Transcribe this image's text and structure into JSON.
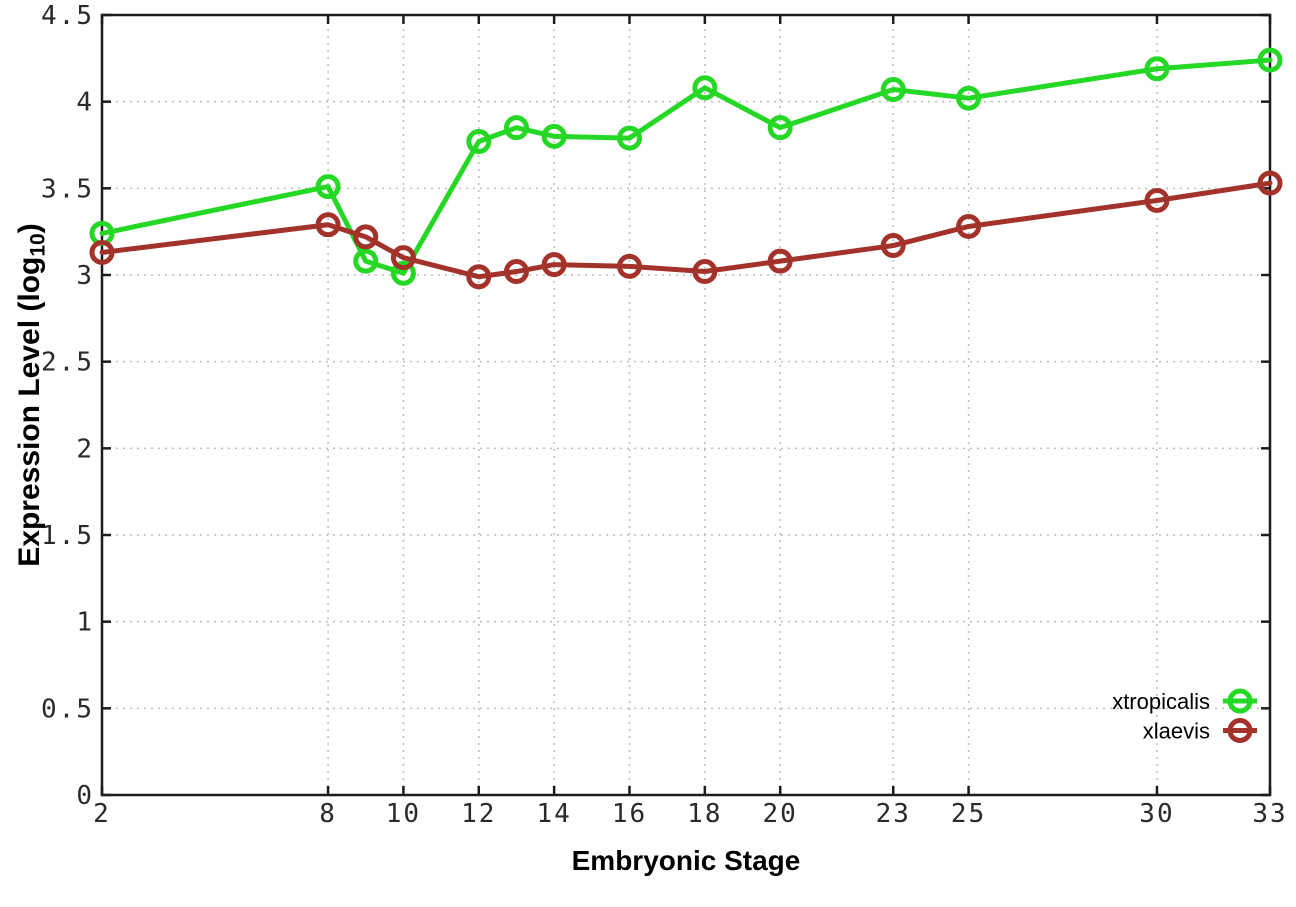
{
  "page": {
    "background": "#ffffff"
  },
  "chart_data": {
    "type": "line",
    "title": "",
    "xlabel": "Embryonic Stage",
    "ylabel": "Expression Level (log10)",
    "ylabel_parts": {
      "main": "Expression Level (log",
      "sub": "10",
      "close": ")"
    },
    "xlim": [
      2,
      33
    ],
    "ylim": [
      0,
      4.5
    ],
    "x_ticks": [
      2,
      8,
      10,
      12,
      14,
      16,
      18,
      20,
      23,
      25,
      30,
      33
    ],
    "x_tick_labels": [
      "2",
      "8",
      "10",
      "12",
      "14",
      "16",
      "18",
      "20",
      "23",
      "25",
      "30",
      "33"
    ],
    "y_ticks": [
      0,
      0.5,
      1,
      1.5,
      2,
      2.5,
      3,
      3.5,
      4,
      4.5
    ],
    "y_tick_labels": [
      "0",
      "0.5",
      "1",
      "1.5",
      "2",
      "2.5",
      "3",
      "3.5",
      "4",
      "4.5"
    ],
    "grid": true,
    "legend_position": "bottom-right-inside",
    "x": [
      2,
      8,
      9,
      10,
      12,
      13,
      14,
      16,
      18,
      20,
      23,
      25,
      30,
      33
    ],
    "series": [
      {
        "name": "xtropicalis",
        "color": "#25d825",
        "values": [
          3.24,
          3.51,
          3.08,
          3.01,
          3.77,
          3.85,
          3.8,
          3.79,
          4.08,
          3.85,
          4.07,
          4.02,
          4.19,
          4.24
        ]
      },
      {
        "name": "xlaevis",
        "color": "#a3332a",
        "values": [
          3.13,
          3.29,
          3.22,
          3.1,
          2.99,
          3.02,
          3.06,
          3.05,
          3.02,
          3.08,
          3.17,
          3.28,
          3.43,
          3.53
        ]
      }
    ],
    "styles": {
      "grid_color": "#bdbdbd",
      "axis_color": "#1c1c1c",
      "tick_label_color": "#2a2a2a",
      "legend_text_color": "#000000"
    }
  }
}
